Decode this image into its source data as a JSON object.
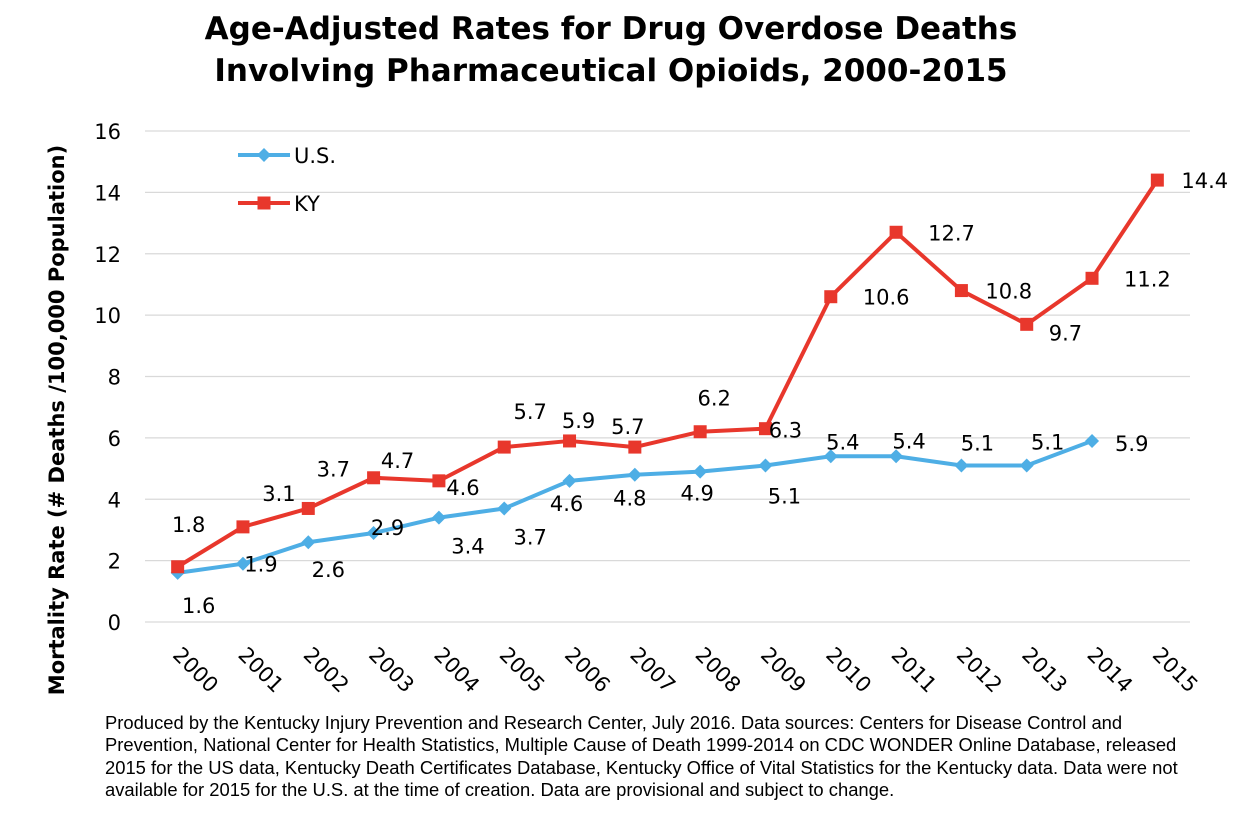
{
  "chart_data": {
    "type": "line",
    "title_line1": "Age-Adjusted Rates for Drug Overdose Deaths",
    "title_line2": "Involving Pharmaceutical Opioids, 2000-2015",
    "ylabel": "Mortality Rate (# Deaths /100,000 Population)",
    "xlabel": "",
    "ylim": [
      0,
      16
    ],
    "yticks": [
      0,
      2,
      4,
      6,
      8,
      10,
      12,
      14,
      16
    ],
    "grid": true,
    "legend_position": "top-left",
    "categories": [
      "2000",
      "2001",
      "2002",
      "2003",
      "2004",
      "2005",
      "2006",
      "2007",
      "2008",
      "2009",
      "2010",
      "2011",
      "2012",
      "2013",
      "2014",
      "2015"
    ],
    "series": [
      {
        "name": "U.S.",
        "color": "#4eaee5",
        "marker": "diamond",
        "values": [
          1.6,
          1.9,
          2.6,
          2.9,
          3.4,
          3.7,
          4.6,
          4.8,
          4.9,
          5.1,
          5.4,
          5.4,
          5.1,
          5.1,
          5.9,
          null
        ],
        "labels": [
          "1.6",
          "1.9",
          "2.6",
          "2.9",
          "3.4",
          "3.7",
          "4.6",
          "4.8",
          "4.9",
          "5.1",
          "5.4",
          "5.4",
          "5.1",
          "5.1",
          "5.9",
          null
        ]
      },
      {
        "name": "KY",
        "color": "#e8372c",
        "marker": "square",
        "values": [
          1.8,
          3.1,
          3.7,
          4.7,
          4.6,
          5.7,
          5.9,
          5.7,
          6.2,
          6.3,
          10.6,
          12.7,
          10.8,
          9.7,
          11.2,
          14.4
        ],
        "labels": [
          "1.8",
          "3.1",
          "3.7",
          "4.7",
          "4.6",
          "5.7",
          "5.9",
          "5.7",
          "6.2",
          "6.3",
          "10.6",
          "12.7",
          "10.8",
          "9.7",
          "11.2",
          "14.4"
        ]
      }
    ]
  },
  "footnote": "Produced by the Kentucky Injury Prevention and Research Center, July 2016. Data sources: Centers for Disease Control and Prevention, National Center for Health Statistics, Multiple Cause of Death 1999-2014 on CDC WONDER Online Database, released 2015 for the US data, Kentucky Death Certificates Database, Kentucky Office of Vital Statistics for the Kentucky data. Data were not available for 2015 for the U.S. at the time of creation. Data are provisional and subject to change."
}
